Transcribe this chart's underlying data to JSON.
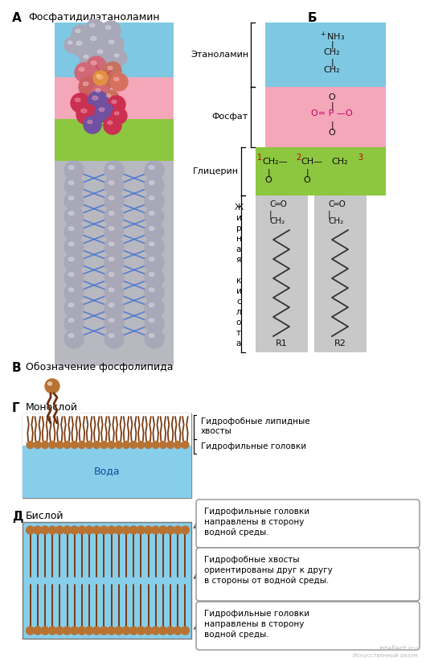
{
  "title_A": "А",
  "title_B": "Б",
  "title_C": "В",
  "title_D": "Г",
  "title_E": "Д",
  "label_phosphatidylethanolamine": "Фосфатидилэтаноламин",
  "label_ethanolamine": "Этаноламин",
  "label_phosphate": "Фосфат",
  "label_glycerol": "Глицерин",
  "label_monolayer": "Монослой",
  "label_bilayer": "Бислой",
  "label_phospholipid_symbol": "Обозначение фосфолипида",
  "label_water": "Вода",
  "label_hydrophobic_tails": "Гидрофобные липидные\nхвосты",
  "label_hydrophilic_heads": "Гидрофильные головки",
  "label_box1": "Гидрофильные головки\nнаправлены в сторону\nводной среды.",
  "label_box2": "Гидрофобные хвосты\nориентированы друг к другу\nв стороны от водной среды.",
  "label_box3": "Гидрофильные головки\nнаправлены в сторону\nводной среды.",
  "color_blue_bg": "#7EC8E3",
  "color_pink_bg": "#F4A7B9",
  "color_green_bg": "#8DC63F",
  "color_gray_bg": "#C8C8C8",
  "color_water_bg": "#87CEEB",
  "color_head": "#B87333",
  "color_tail": "#7B3F00",
  "bg_color": "#FFFFFF",
  "sphere_gray": "#A8A8B8",
  "sphere_gray_hi": "#E0E0EE",
  "sphere_blue_link": "#3060C0",
  "sphere_pink": "#E06080",
  "sphere_red": "#CC3050",
  "sphere_orange": "#E08020",
  "sphere_purple": "#7050A0"
}
